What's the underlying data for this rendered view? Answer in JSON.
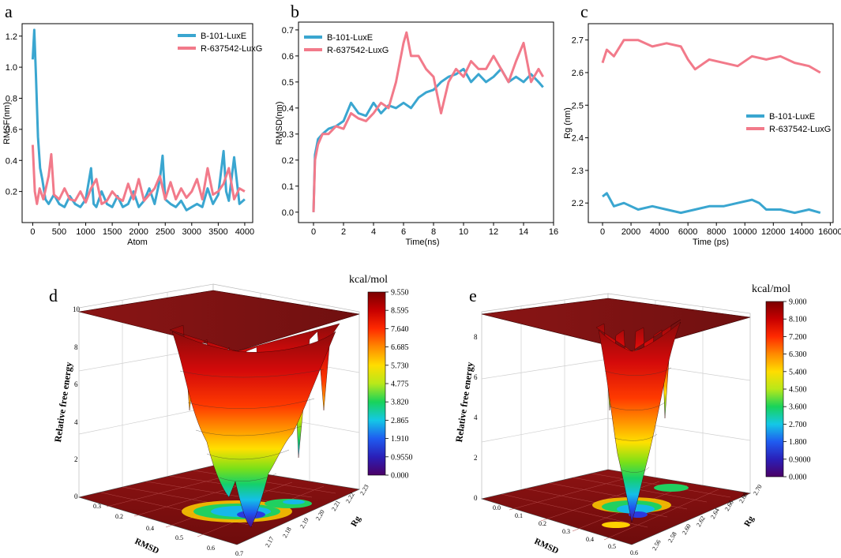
{
  "chart_data": [
    {
      "panel": "a",
      "type": "line",
      "xlabel": "Atom",
      "ylabel": "RMSF(nm)",
      "xlim": [
        -200,
        4150
      ],
      "ylim": [
        0,
        1.28
      ],
      "xticks": [
        0,
        500,
        1000,
        1500,
        2000,
        2500,
        3000,
        3500,
        4000
      ],
      "yticks": [
        0.2,
        0.4,
        0.6,
        0.8,
        1.0,
        1.2
      ],
      "ytick_labels": [
        "0.2",
        "0.4",
        "0.6",
        "0.8",
        "1.0",
        "1.2"
      ],
      "legend_position": "top-right",
      "series": [
        {
          "name": "B-101-LuxE",
          "color": "#3aa6d0",
          "x": [
            0,
            30,
            60,
            100,
            140,
            180,
            240,
            300,
            400,
            500,
            600,
            700,
            800,
            900,
            1000,
            1100,
            1150,
            1200,
            1300,
            1400,
            1500,
            1600,
            1700,
            1800,
            1900,
            2000,
            2100,
            2200,
            2300,
            2400,
            2450,
            2500,
            2600,
            2700,
            2800,
            2900,
            3000,
            3100,
            3200,
            3300,
            3400,
            3500,
            3600,
            3650,
            3700,
            3800,
            3900,
            4000
          ],
          "values": [
            1.05,
            1.24,
            0.95,
            0.55,
            0.35,
            0.28,
            0.15,
            0.12,
            0.18,
            0.12,
            0.1,
            0.17,
            0.12,
            0.1,
            0.15,
            0.35,
            0.12,
            0.1,
            0.2,
            0.12,
            0.1,
            0.17,
            0.1,
            0.12,
            0.2,
            0.1,
            0.14,
            0.22,
            0.12,
            0.28,
            0.43,
            0.15,
            0.12,
            0.1,
            0.14,
            0.08,
            0.1,
            0.12,
            0.1,
            0.22,
            0.12,
            0.18,
            0.46,
            0.2,
            0.14,
            0.42,
            0.12,
            0.15
          ]
        },
        {
          "name": "R-637542-LuxG",
          "color": "#f27a8a",
          "x": [
            0,
            40,
            80,
            130,
            200,
            300,
            350,
            400,
            500,
            600,
            700,
            800,
            900,
            1000,
            1100,
            1200,
            1300,
            1400,
            1500,
            1600,
            1700,
            1800,
            1900,
            2000,
            2100,
            2200,
            2300,
            2400,
            2500,
            2600,
            2700,
            2800,
            2900,
            3000,
            3100,
            3200,
            3300,
            3400,
            3500,
            3600,
            3700,
            3800,
            3900,
            4000
          ],
          "values": [
            0.5,
            0.2,
            0.12,
            0.22,
            0.15,
            0.3,
            0.44,
            0.18,
            0.15,
            0.22,
            0.15,
            0.14,
            0.2,
            0.13,
            0.22,
            0.28,
            0.12,
            0.14,
            0.2,
            0.16,
            0.14,
            0.25,
            0.15,
            0.28,
            0.14,
            0.18,
            0.22,
            0.3,
            0.15,
            0.26,
            0.15,
            0.22,
            0.16,
            0.2,
            0.28,
            0.15,
            0.35,
            0.18,
            0.2,
            0.25,
            0.35,
            0.15,
            0.22,
            0.2
          ]
        }
      ]
    },
    {
      "panel": "b",
      "type": "line",
      "xlabel": "Time(ns)",
      "ylabel": "RMSD(nm)",
      "xlim": [
        -1,
        16
      ],
      "ylim": [
        -0.04,
        0.73
      ],
      "xticks": [
        0,
        2,
        4,
        6,
        8,
        10,
        12,
        14,
        16
      ],
      "yticks": [
        0.0,
        0.1,
        0.2,
        0.3,
        0.4,
        0.5,
        0.6,
        0.7
      ],
      "ytick_labels": [
        "0.0",
        "0.1",
        "0.2",
        "0.3",
        "0.4",
        "0.5",
        "0.6",
        "0.7"
      ],
      "legend_position": "top-left",
      "series": [
        {
          "name": "B-101-LuxE",
          "color": "#3aa6d0",
          "x": [
            0,
            0.1,
            0.3,
            0.6,
            1,
            1.5,
            2,
            2.5,
            3,
            3.5,
            4,
            4.5,
            5,
            5.5,
            6,
            6.5,
            7,
            7.5,
            8,
            8.5,
            9,
            9.5,
            10,
            10.5,
            11,
            11.5,
            12,
            12.5,
            13,
            13.5,
            14,
            14.5,
            15,
            15.3
          ],
          "values": [
            0.0,
            0.22,
            0.28,
            0.3,
            0.32,
            0.33,
            0.35,
            0.42,
            0.38,
            0.37,
            0.42,
            0.38,
            0.41,
            0.4,
            0.42,
            0.4,
            0.44,
            0.46,
            0.47,
            0.5,
            0.52,
            0.53,
            0.55,
            0.5,
            0.53,
            0.5,
            0.52,
            0.55,
            0.5,
            0.52,
            0.5,
            0.53,
            0.5,
            0.48
          ]
        },
        {
          "name": "R-637542-LuxG",
          "color": "#f27a8a",
          "x": [
            0,
            0.1,
            0.3,
            0.6,
            1,
            1.5,
            2,
            2.5,
            3,
            3.5,
            4,
            4.5,
            5,
            5.5,
            6,
            6.2,
            6.5,
            7,
            7.5,
            8,
            8.5,
            9,
            9.5,
            10,
            10.5,
            11,
            11.5,
            12,
            12.5,
            13,
            13.5,
            14,
            14.5,
            15,
            15.3
          ],
          "values": [
            0.0,
            0.2,
            0.26,
            0.3,
            0.3,
            0.33,
            0.32,
            0.38,
            0.36,
            0.35,
            0.38,
            0.42,
            0.4,
            0.5,
            0.65,
            0.69,
            0.6,
            0.6,
            0.55,
            0.52,
            0.38,
            0.5,
            0.55,
            0.52,
            0.58,
            0.55,
            0.55,
            0.6,
            0.55,
            0.5,
            0.58,
            0.65,
            0.5,
            0.55,
            0.52
          ]
        }
      ]
    },
    {
      "panel": "c",
      "type": "line",
      "xlabel": "Time (ps)",
      "ylabel": "Rg (nm)",
      "xlim": [
        -1000,
        16200
      ],
      "ylim": [
        2.14,
        2.75
      ],
      "xticks": [
        0,
        2000,
        4000,
        6000,
        8000,
        10000,
        12000,
        14000,
        16000
      ],
      "yticks": [
        2.2,
        2.3,
        2.4,
        2.5,
        2.6,
        2.7
      ],
      "ytick_labels": [
        "2.2",
        "2.3",
        "2.4",
        "2.5",
        "2.6",
        "2.7"
      ],
      "legend_position": "middle-right",
      "series": [
        {
          "name": "B-101-LuxE",
          "color": "#3aa6d0",
          "x": [
            0,
            300,
            800,
            1500,
            2500,
            3500,
            4500,
            5500,
            6500,
            7500,
            8500,
            9500,
            10500,
            11000,
            11500,
            12500,
            13500,
            14500,
            15300
          ],
          "values": [
            2.22,
            2.23,
            2.19,
            2.2,
            2.18,
            2.19,
            2.18,
            2.17,
            2.18,
            2.19,
            2.19,
            2.2,
            2.21,
            2.2,
            2.18,
            2.18,
            2.17,
            2.18,
            2.17
          ]
        },
        {
          "name": "R-637542-LuxG",
          "color": "#f27a8a",
          "x": [
            0,
            300,
            800,
            1500,
            2500,
            3500,
            4500,
            5500,
            6000,
            6500,
            7500,
            8500,
            9500,
            10500,
            11500,
            12500,
            13500,
            14500,
            15300
          ],
          "values": [
            2.63,
            2.67,
            2.65,
            2.7,
            2.7,
            2.68,
            2.69,
            2.68,
            2.64,
            2.61,
            2.64,
            2.63,
            2.62,
            2.65,
            2.64,
            2.65,
            2.63,
            2.62,
            2.6
          ]
        }
      ]
    },
    {
      "panel": "d",
      "type": "surface3d",
      "colorbar_title": "kcal/mol",
      "colorbar_ticks": [
        "9.550",
        "8.595",
        "7.640",
        "6.685",
        "5.730",
        "4.775",
        "3.820",
        "2.865",
        "1.910",
        "0.9550",
        "0.000"
      ],
      "zlabel": "Relative free energy",
      "xlabel": "RMSD",
      "ylabel": "Rg",
      "zticks": [
        "0",
        "2",
        "4",
        "6",
        "8",
        "10"
      ],
      "xticks": [
        "0.3",
        "0.2",
        "0.4",
        "0.5",
        "0.6",
        "0.7"
      ],
      "yticks": [
        "2.17",
        "2.18",
        "2.19",
        "2.20",
        "2.21",
        "2.22",
        "2.23"
      ],
      "z_range": [
        0,
        9.55
      ]
    },
    {
      "panel": "e",
      "type": "surface3d",
      "colorbar_title": "kcal/mol",
      "colorbar_ticks": [
        "9.000",
        "8.100",
        "7.200",
        "6.300",
        "5.400",
        "4.500",
        "3.600",
        "2.700",
        "1.800",
        "0.9000",
        "0.000"
      ],
      "zlabel": "Relative free energy",
      "xlabel": "RMSD",
      "ylabel": "Rg",
      "zticks": [
        "0",
        "2",
        "4",
        "6",
        "8"
      ],
      "xticks": [
        "0.0",
        "0.1",
        "0.2",
        "0.3",
        "0.4",
        "0.5",
        "0.6"
      ],
      "yticks": [
        "2.56",
        "2.58",
        "2.60",
        "2.62",
        "2.64",
        "2.66",
        "2.68",
        "2.70"
      ],
      "z_range": [
        0,
        9.0
      ]
    }
  ]
}
